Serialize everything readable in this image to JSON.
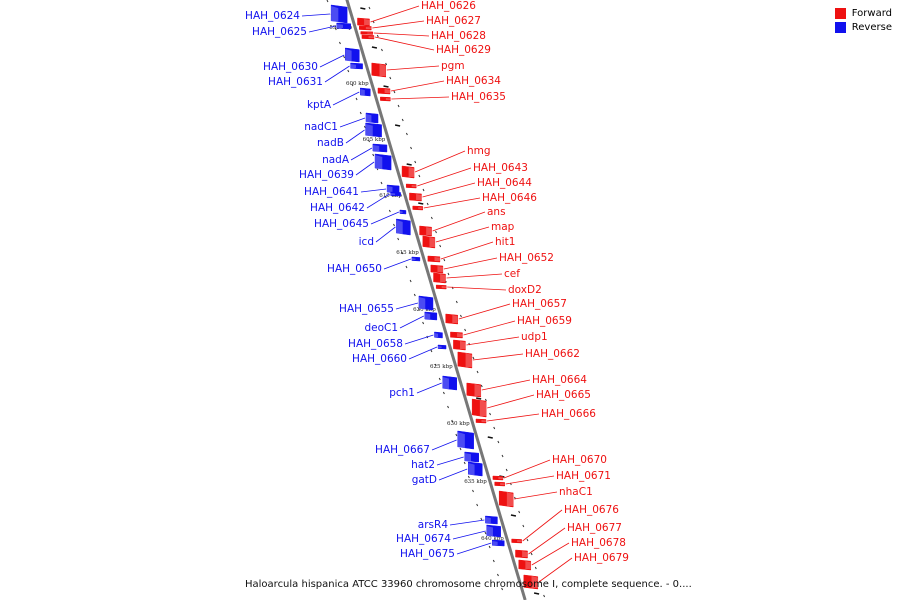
{
  "legend": [
    {
      "label": "Forward",
      "color": "#ee1111"
    },
    {
      "label": "Reverse",
      "color": "#1111ee"
    }
  ],
  "caption": "Haloarcula hispanica ATCC 33960 chromosome chromosome I, complete sequence. - 0....",
  "colors": {
    "forward": "#ee1111",
    "reverse": "#1111ee",
    "backbone": "#888888"
  },
  "ruler_labels": [
    "595 kbp",
    "600 kbp",
    "605 kbp",
    "610 kbp",
    "615 kbp",
    "620 kbp",
    "625 kbp",
    "630 kbp",
    "635 kbp",
    "640 kbp"
  ],
  "reverse_genes": [
    "HAH_0624",
    "HAH_0625",
    "HAH_0630",
    "HAH_0631",
    "kptA",
    "nadC1",
    "nadB",
    "nadA",
    "HAH_0639",
    "HAH_0641",
    "HAH_0642",
    "HAH_0645",
    "icd",
    "HAH_0650",
    "HAH_0655",
    "deoC1",
    "HAH_0658",
    "HAH_0660",
    "pch1",
    "HAH_0667",
    "hat2",
    "gatD",
    "arsR4",
    "HAH_0674",
    "HAH_0675"
  ],
  "forward_genes": [
    "HAH_0626",
    "HAH_0627",
    "HAH_0628",
    "HAH_0629",
    "pgm",
    "HAH_0634",
    "HAH_0635",
    "hmg",
    "HAH_0643",
    "HAH_0644",
    "HAH_0646",
    "ans",
    "map",
    "hit1",
    "HAH_0652",
    "cef",
    "doxD2",
    "HAH_0657",
    "HAH_0659",
    "udp1",
    "HAH_0662",
    "HAH_0664",
    "HAH_0665",
    "HAH_0666",
    "HAH_0670",
    "HAH_0671",
    "nhaC1",
    "HAH_0676",
    "HAH_0677",
    "HAH_0678",
    "HAH_0679"
  ]
}
